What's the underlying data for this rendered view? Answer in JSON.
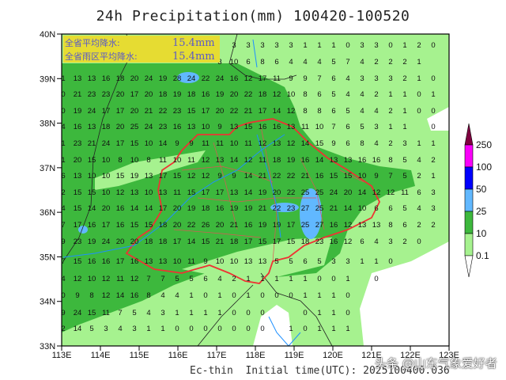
{
  "title": "24h Precipitation(mm) 100420-100520",
  "info_box": {
    "province_avg_label": "全省平均降水:",
    "province_avg_value": "15.4mm",
    "rain_area_avg_label": "全省雨区平均降水:",
    "rain_area_avg_value": "15.4mm",
    "background_color": "#e6dc32"
  },
  "axes": {
    "lat_labels": [
      "40N",
      "39N",
      "38N",
      "37N",
      "36N",
      "35N",
      "34N",
      "33N"
    ],
    "lon_labels": [
      "113E",
      "114E",
      "115E",
      "116E",
      "117E",
      "118E",
      "119E",
      "120E",
      "121E",
      "122E",
      "123E"
    ]
  },
  "colorbar": {
    "levels": [
      "0.1",
      "10",
      "25",
      "50",
      "100",
      "250"
    ],
    "colors": [
      "#ffffff",
      "#a6f28f",
      "#3db83d",
      "#61b8ff",
      "#0000fe",
      "#fa00fa",
      "#800040"
    ]
  },
  "footer": "Ec-thin  Initial time(UTC): 2025100400.036",
  "watermark": "头条 @山东气象爱好者",
  "grid_values": [
    [
      null,
      null,
      null,
      null,
      null,
      null,
      null,
      null,
      null,
      null,
      null,
      null,
      3,
      3,
      3,
      3,
      3,
      1,
      1,
      1,
      0,
      3,
      3,
      0,
      1,
      2,
      0
    ],
    [
      null,
      null,
      null,
      null,
      null,
      null,
      null,
      null,
      null,
      null,
      null,
      3,
      10,
      6,
      8,
      6,
      4,
      4,
      4,
      5,
      7,
      4,
      2,
      2,
      2,
      1,
      null
    ],
    [
      1,
      13,
      13,
      16,
      18,
      20,
      24,
      19,
      28,
      24,
      22,
      24,
      16,
      12,
      17,
      11,
      9,
      9,
      7,
      6,
      4,
      3,
      3,
      3,
      2,
      1,
      0
    ],
    [
      0,
      21,
      23,
      23,
      20,
      17,
      20,
      18,
      19,
      18,
      16,
      19,
      20,
      22,
      18,
      12,
      10,
      8,
      6,
      5,
      4,
      4,
      2,
      1,
      1,
      0,
      1
    ],
    [
      0,
      19,
      24,
      17,
      17,
      20,
      21,
      22,
      23,
      15,
      17,
      20,
      22,
      21,
      17,
      14,
      12,
      8,
      8,
      6,
      5,
      4,
      4,
      2,
      1,
      0,
      0
    ],
    [
      4,
      16,
      13,
      18,
      20,
      25,
      24,
      23,
      16,
      13,
      10,
      9,
      13,
      15,
      16,
      16,
      13,
      11,
      10,
      7,
      6,
      5,
      3,
      1,
      1,
      null,
      0
    ],
    [
      1,
      23,
      21,
      24,
      17,
      15,
      10,
      14,
      9,
      9,
      11,
      11,
      10,
      11,
      12,
      13,
      12,
      14,
      15,
      9,
      6,
      8,
      4,
      2,
      3,
      1,
      1
    ],
    [
      1,
      20,
      15,
      10,
      8,
      10,
      8,
      11,
      10,
      11,
      12,
      13,
      14,
      12,
      11,
      18,
      19,
      16,
      14,
      13,
      13,
      16,
      16,
      8,
      5,
      4,
      2
    ],
    [
      6,
      13,
      10,
      10,
      15,
      19,
      13,
      17,
      15,
      12,
      12,
      9,
      9,
      14,
      21,
      22,
      22,
      21,
      16,
      15,
      15,
      10,
      9,
      7,
      5,
      2,
      1
    ],
    [
      2,
      15,
      15,
      10,
      12,
      13,
      10,
      13,
      11,
      15,
      17,
      17,
      13,
      14,
      19,
      20,
      22,
      25,
      25,
      24,
      20,
      14,
      12,
      12,
      11,
      6,
      3
    ],
    [
      4,
      15,
      14,
      20,
      16,
      14,
      14,
      17,
      20,
      19,
      18,
      16,
      19,
      19,
      21,
      22,
      23,
      27,
      25,
      21,
      14,
      10,
      6,
      6,
      5,
      4,
      3
    ],
    [
      7,
      17,
      16,
      17,
      16,
      15,
      15,
      18,
      20,
      22,
      26,
      20,
      21,
      16,
      19,
      19,
      17,
      25,
      27,
      16,
      12,
      13,
      13,
      8,
      6,
      2,
      2
    ],
    [
      9,
      23,
      19,
      24,
      20,
      20,
      18,
      18,
      17,
      14,
      15,
      21,
      18,
      17,
      15,
      17,
      15,
      18,
      23,
      16,
      12,
      6,
      4,
      3,
      2,
      0,
      null
    ],
    [
      7,
      15,
      16,
      16,
      17,
      16,
      13,
      13,
      10,
      11,
      9,
      10,
      10,
      13,
      13,
      5,
      5,
      6,
      5,
      3,
      3,
      1,
      1,
      0,
      null,
      null,
      null
    ],
    [
      4,
      12,
      10,
      12,
      11,
      12,
      7,
      7,
      5,
      5,
      6,
      4,
      2,
      1,
      1,
      1,
      1,
      1,
      0,
      0,
      1,
      null,
      0,
      null,
      null,
      null,
      null
    ],
    [
      0,
      9,
      8,
      12,
      14,
      16,
      8,
      4,
      4,
      1,
      0,
      1,
      0,
      1,
      0,
      0,
      0,
      1,
      1,
      1,
      0,
      null,
      null,
      null,
      null,
      null,
      null
    ],
    [
      9,
      24,
      15,
      11,
      7,
      5,
      4,
      3,
      1,
      1,
      1,
      1,
      0,
      0,
      0,
      null,
      null,
      0,
      1,
      1,
      0,
      null,
      null,
      null,
      null,
      null,
      null
    ],
    [
      2,
      14,
      5,
      3,
      4,
      3,
      1,
      1,
      0,
      0,
      0,
      0,
      0,
      0,
      0,
      null,
      1,
      0,
      1,
      1,
      1,
      null,
      null,
      null,
      null,
      null,
      null
    ]
  ]
}
